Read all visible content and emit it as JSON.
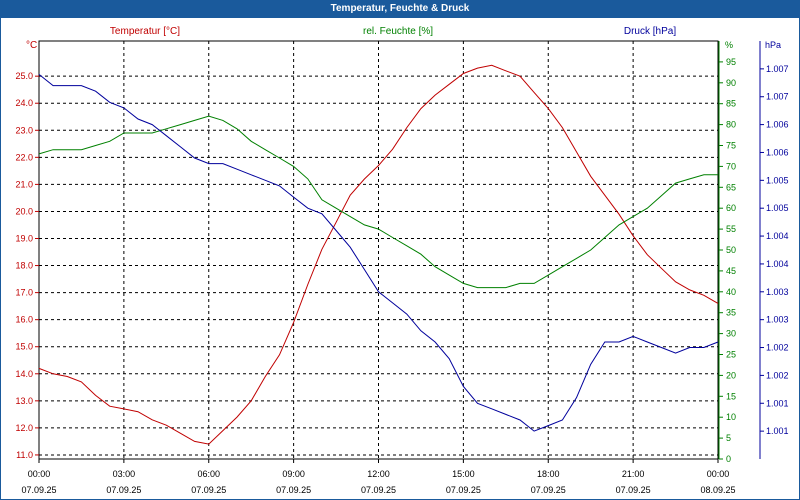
{
  "colors": {
    "title_bar": "#1a5a9c",
    "temperature": "#c00000",
    "humidity": "#008000",
    "pressure": "#00009c",
    "grid": "#000000"
  },
  "chart_data": {
    "type": "line",
    "title": "Temperatur, Feuchte & Druck",
    "x_ticks": [
      {
        "time": "00:00",
        "date": "07.09.25"
      },
      {
        "time": "03:00",
        "date": "07.09.25"
      },
      {
        "time": "06:00",
        "date": "07.09.25"
      },
      {
        "time": "09:00",
        "date": "07.09.25"
      },
      {
        "time": "12:00",
        "date": "07.09.25"
      },
      {
        "time": "15:00",
        "date": "07.09.25"
      },
      {
        "time": "18:00",
        "date": "07.09.25"
      },
      {
        "time": "21:00",
        "date": "07.09.25"
      },
      {
        "time": "00:00",
        "date": "08.09.25"
      }
    ],
    "xlim_hours": [
      0,
      24
    ],
    "axes": {
      "temperature": {
        "label": "Temperatur [°C]",
        "unit": "°C",
        "ylim": [
          10.85,
          26.3
        ],
        "ticks": [
          "11.0",
          "12.0",
          "13.0",
          "14.0",
          "15.0",
          "16.0",
          "17.0",
          "18.0",
          "19.0",
          "20.0",
          "21.0",
          "22.0",
          "23.0",
          "24.0",
          "25.0"
        ]
      },
      "humidity": {
        "label": "rel. Feuchte [%]",
        "unit": "%",
        "ylim": [
          0,
          100
        ],
        "ticks": [
          "0",
          "5",
          "10",
          "15",
          "20",
          "25",
          "30",
          "35",
          "40",
          "45",
          "50",
          "55",
          "60",
          "65",
          "70",
          "75",
          "80",
          "85",
          "90",
          "95"
        ]
      },
      "pressure": {
        "label": "Druck [hPa]",
        "unit": "hPa",
        "ylim": [
          1000.5,
          1008.0
        ],
        "ticks": [
          "1.001",
          "1.001",
          "1.002",
          "1.002",
          "1.003",
          "1.003",
          "1.004",
          "1.004",
          "1.005",
          "1.005",
          "1.006",
          "1.006",
          "1.007",
          "1.007"
        ]
      }
    },
    "series": [
      {
        "name": "Temperatur",
        "axis": "temperature",
        "x": [
          0,
          0.5,
          1,
          1.5,
          2,
          2.5,
          3,
          3.5,
          4,
          4.5,
          5,
          5.5,
          6,
          6.5,
          7,
          7.5,
          8,
          8.5,
          9,
          9.5,
          10,
          10.5,
          11,
          11.5,
          12,
          12.5,
          13,
          13.5,
          14,
          14.5,
          15,
          15.5,
          16,
          16.5,
          17,
          17.5,
          18,
          18.5,
          19,
          19.5,
          20,
          20.5,
          21,
          21.5,
          22,
          22.5,
          23,
          23.5,
          24
        ],
        "values": [
          14.2,
          14.0,
          13.9,
          13.7,
          13.2,
          12.8,
          12.7,
          12.6,
          12.3,
          12.1,
          11.8,
          11.5,
          11.4,
          11.9,
          12.4,
          13.0,
          13.9,
          14.7,
          15.9,
          17.3,
          18.6,
          19.6,
          20.6,
          21.2,
          21.7,
          22.3,
          23.1,
          23.8,
          24.3,
          24.7,
          25.1,
          25.3,
          25.4,
          25.2,
          25.0,
          24.4,
          23.8,
          23.1,
          22.2,
          21.3,
          20.6,
          19.9,
          19.1,
          18.4,
          17.9,
          17.4,
          17.1,
          16.9,
          16.6
        ]
      },
      {
        "name": "rel. Feuchte",
        "axis": "humidity",
        "x": [
          0,
          0.5,
          1,
          1.5,
          2,
          2.5,
          3,
          3.5,
          4,
          4.5,
          5,
          5.5,
          6,
          6.5,
          7,
          7.5,
          8,
          8.5,
          9,
          9.5,
          10,
          10.5,
          11,
          11.5,
          12,
          12.5,
          13,
          13.5,
          14,
          14.5,
          15,
          15.5,
          16,
          16.5,
          17,
          17.5,
          18,
          18.5,
          19,
          19.5,
          20,
          20.5,
          21,
          21.5,
          22,
          22.5,
          23,
          23.5,
          24
        ],
        "values": [
          73,
          74,
          74,
          74,
          75,
          76,
          78,
          78,
          78,
          79,
          80,
          81,
          82,
          81,
          79,
          76,
          74,
          72,
          70,
          67,
          62,
          60,
          58,
          56,
          55,
          53,
          51,
          49,
          46,
          44,
          42,
          41,
          41,
          41,
          42,
          42,
          44,
          46,
          48,
          50,
          53,
          56,
          58,
          60,
          63,
          66,
          67,
          68,
          68
        ]
      },
      {
        "name": "Druck",
        "axis": "pressure",
        "x": [
          0,
          0.5,
          1,
          1.5,
          2,
          2.5,
          3,
          3.5,
          4,
          4.5,
          5,
          5.5,
          6,
          6.5,
          7,
          7.5,
          8,
          8.5,
          9,
          9.5,
          10,
          10.5,
          11,
          11.5,
          12,
          12.5,
          13,
          13.5,
          14,
          14.5,
          15,
          15.5,
          16,
          16.5,
          17,
          17.5,
          18,
          18.5,
          19,
          19.5,
          20,
          20.5,
          21,
          21.5,
          22,
          22.5,
          23,
          23.5,
          24
        ],
        "values": [
          1007.4,
          1007.2,
          1007.2,
          1007.2,
          1007.1,
          1006.9,
          1006.8,
          1006.6,
          1006.5,
          1006.3,
          1006.1,
          1005.9,
          1005.8,
          1005.8,
          1005.7,
          1005.6,
          1005.5,
          1005.4,
          1005.2,
          1005.0,
          1004.9,
          1004.6,
          1004.3,
          1003.9,
          1003.5,
          1003.3,
          1003.1,
          1002.8,
          1002.6,
          1002.3,
          1001.8,
          1001.5,
          1001.4,
          1001.3,
          1001.2,
          1001.0,
          1001.1,
          1001.2,
          1001.6,
          1002.2,
          1002.6,
          1002.6,
          1002.7,
          1002.6,
          1002.5,
          1002.4,
          1002.5,
          1002.5,
          1002.6
        ]
      }
    ]
  }
}
